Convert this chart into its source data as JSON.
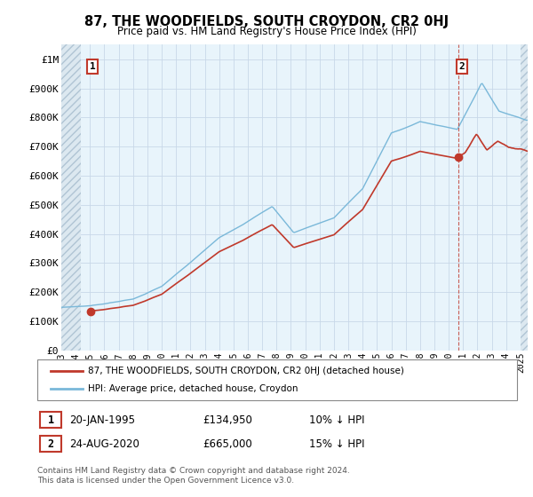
{
  "title": "87, THE WOODFIELDS, SOUTH CROYDON, CR2 0HJ",
  "subtitle": "Price paid vs. HM Land Registry's House Price Index (HPI)",
  "ylabel_ticks": [
    "£0",
    "£100K",
    "£200K",
    "£300K",
    "£400K",
    "£500K",
    "£600K",
    "£700K",
    "£800K",
    "£900K",
    "£1M"
  ],
  "ytick_values": [
    0,
    100000,
    200000,
    300000,
    400000,
    500000,
    600000,
    700000,
    800000,
    900000,
    1000000
  ],
  "ylim": [
    0,
    1050000
  ],
  "legend_line1": "87, THE WOODFIELDS, SOUTH CROYDON, CR2 0HJ (detached house)",
  "legend_line2": "HPI: Average price, detached house, Croydon",
  "annotation1_label": "1",
  "annotation1_date": "20-JAN-1995",
  "annotation1_price": "£134,950",
  "annotation1_note": "10% ↓ HPI",
  "annotation2_label": "2",
  "annotation2_date": "24-AUG-2020",
  "annotation2_price": "£665,000",
  "annotation2_note": "15% ↓ HPI",
  "footer": "Contains HM Land Registry data © Crown copyright and database right 2024.\nThis data is licensed under the Open Government Licence v3.0.",
  "hpi_color": "#7ab8d9",
  "price_color": "#c0392b",
  "grid_color": "#c8d8e8",
  "plot_bg": "#e8f4fb",
  "hatch_bg": "#dce8f0",
  "sale1_x": 1995.055,
  "sale1_y": 134950,
  "sale2_x": 2020.648,
  "sale2_y": 665000,
  "xmin": 1993,
  "xmax": 2025.5
}
